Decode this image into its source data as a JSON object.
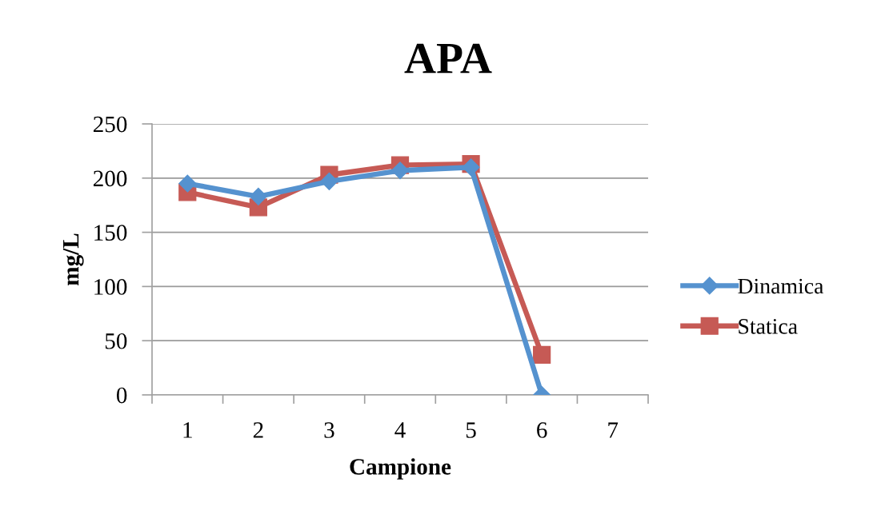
{
  "chart_data": {
    "type": "line",
    "title": "APA",
    "xlabel": "Campione",
    "ylabel": "mg/L",
    "categories": [
      "1",
      "2",
      "3",
      "4",
      "5",
      "6",
      "7"
    ],
    "series": [
      {
        "name": "Dinamica",
        "color": "#5592cf",
        "marker": "diamond",
        "values": [
          195,
          183,
          197,
          207,
          210,
          0,
          null
        ]
      },
      {
        "name": "Statica",
        "color": "#c65a55",
        "marker": "square",
        "values": [
          187,
          173,
          203,
          212,
          213,
          37,
          null
        ]
      }
    ],
    "ylim": [
      0,
      250
    ],
    "yticks": [
      0,
      50,
      100,
      150,
      200,
      250
    ],
    "grid": "y",
    "legend": "right",
    "line_style": "solid"
  }
}
